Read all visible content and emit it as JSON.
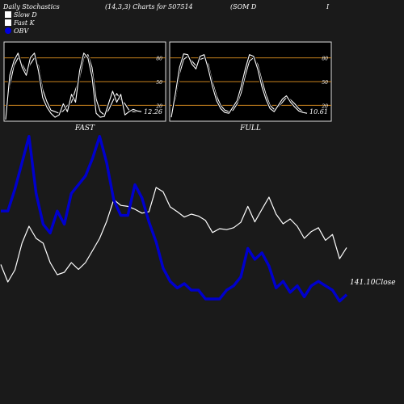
{
  "header": {
    "title": "Daily Stochastics",
    "params": "(14,3,3) Charts for 507514",
    "symbol": "(SOM D",
    "trail": "I"
  },
  "legend": [
    {
      "label": "Slow  D",
      "color": "#ffffff"
    },
    {
      "label": "Fast K",
      "color": "#ffffff"
    },
    {
      "label": "OBV",
      "color": "#0000dd"
    }
  ],
  "colors": {
    "background": "#1a1a1a",
    "panel": "#000000",
    "level_line": "#c8821e",
    "price": "#ffffff",
    "obv": "#0000cc"
  },
  "chart_data": [
    {
      "type": "line",
      "title": "FAST",
      "yticks": [
        20,
        50,
        80
      ],
      "ylim": [
        0,
        100
      ],
      "last_label": "12.26",
      "series": [
        {
          "name": "Slow  D",
          "values": [
            5,
            45,
            70,
            80,
            72,
            62,
            72,
            80,
            70,
            40,
            25,
            14,
            12,
            10,
            13,
            20,
            24,
            40,
            55,
            80,
            84,
            68,
            28,
            12,
            8,
            14,
            25,
            35,
            27,
            22,
            14,
            12,
            12,
            12
          ]
        },
        {
          "name": "Fast K",
          "values": [
            2,
            58,
            76,
            86,
            68,
            58,
            80,
            86,
            63,
            30,
            18,
            10,
            5,
            8,
            22,
            12,
            34,
            24,
            64,
            86,
            80,
            56,
            10,
            5,
            6,
            22,
            38,
            24,
            34,
            8,
            12,
            15,
            13,
            12
          ]
        }
      ]
    },
    {
      "type": "line",
      "title": "FULL",
      "yticks": [
        20,
        50,
        80
      ],
      "ylim": [
        0,
        100
      ],
      "last_label": "10.61",
      "series": [
        {
          "name": "Slow  D",
          "values": [
            10,
            28,
            60,
            78,
            82,
            76,
            70,
            78,
            80,
            72,
            50,
            32,
            20,
            14,
            12,
            14,
            22,
            36,
            58,
            76,
            80,
            72,
            52,
            34,
            20,
            15,
            18,
            24,
            30,
            27,
            22,
            16,
            12,
            10
          ]
        },
        {
          "name": "Fast K",
          "values": [
            5,
            35,
            68,
            85,
            84,
            72,
            66,
            82,
            84,
            66,
            44,
            26,
            16,
            11,
            10,
            18,
            26,
            44,
            66,
            84,
            82,
            66,
            44,
            28,
            16,
            12,
            20,
            28,
            32,
            24,
            18,
            13,
            11,
            10
          ]
        }
      ]
    },
    {
      "type": "line",
      "title": "",
      "last_label": "141.10Close",
      "series": [
        {
          "name": "Close",
          "values": [
            137.6,
            134.0,
            136.5,
            142.0,
            145.5,
            143.0,
            142.0,
            138.0,
            135.5,
            136.0,
            138.0,
            136.6,
            138.0,
            140.5,
            143.0,
            146.5,
            151.0,
            149.8,
            149.6,
            149.0,
            148.2,
            148.5,
            153.5,
            152.6,
            149.5,
            148.5,
            147.4,
            148.0,
            147.6,
            146.7,
            144.2,
            145.0,
            144.8,
            145.2,
            146.3,
            149.6,
            146.4,
            149.0,
            151.5,
            148.0,
            146.0,
            147.0,
            145.5,
            143.0,
            144.4,
            145.2,
            142.6,
            143.8,
            138.8,
            141.1
          ]
        },
        {
          "name": "OBV",
          "values": [
            150,
            150,
            160,
            172,
            184,
            158,
            144,
            140,
            150,
            144,
            158,
            162,
            166,
            174,
            184,
            172,
            155,
            148,
            148,
            162,
            156,
            145,
            136,
            124,
            118,
            115,
            117,
            114,
            114,
            110,
            110,
            110,
            114,
            116,
            120,
            133,
            128,
            131,
            125,
            115,
            118,
            113,
            116,
            111,
            116,
            118,
            116,
            114,
            109,
            112
          ]
        }
      ]
    }
  ]
}
